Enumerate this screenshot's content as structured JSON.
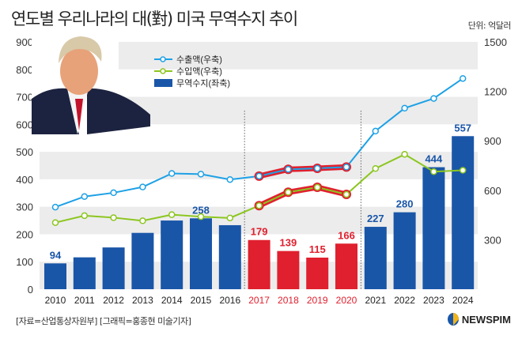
{
  "title": "연도별 우리나라의 대(對) 미국 무역수지 추이",
  "unit": "단위: 억달러",
  "source": "[자료=산업통상자원부] [그래픽=홍종현 미술기자]",
  "logo": "NEWSPIM",
  "chart_data": {
    "type": "bar+line",
    "categories": [
      "2010",
      "2011",
      "2012",
      "2013",
      "2014",
      "2015",
      "2016",
      "2017",
      "2018",
      "2019",
      "2020",
      "2021",
      "2022",
      "2023",
      "2024"
    ],
    "highlight_categories": [
      "2017",
      "2018",
      "2019",
      "2020"
    ],
    "left_axis": {
      "ylim": [
        0,
        900
      ],
      "ticks": [
        0,
        100,
        200,
        300,
        400,
        500,
        600,
        700,
        800,
        900
      ]
    },
    "right_axis": {
      "ylim": [
        0,
        1500
      ],
      "ticks": [
        300,
        600,
        900,
        1200,
        1500
      ]
    },
    "series": [
      {
        "name": "무역수지(좌축)",
        "type": "bar",
        "axis": "left",
        "color": "#1a56a8",
        "highlight_color": "#e0202e",
        "values": [
          94,
          116,
          152,
          205,
          250,
          258,
          233,
          179,
          139,
          115,
          166,
          227,
          280,
          444,
          557
        ],
        "labels": {
          "2010": "94",
          "2015": "258",
          "2017": "179",
          "2018": "139",
          "2019": "115",
          "2020": "166",
          "2021": "227",
          "2022": "280",
          "2023": "444",
          "2024": "557"
        }
      },
      {
        "name": "수출액(우축)",
        "type": "line",
        "axis": "right",
        "color": "#1da1e6",
        "values": [
          498,
          562,
          585,
          620,
          702,
          698,
          665,
          686,
          727,
          733,
          741,
          959,
          1098,
          1157,
          1278
        ]
      },
      {
        "name": "수입액(우축)",
        "type": "line",
        "axis": "right",
        "color": "#8cc61f",
        "values": [
          404,
          446,
          434,
          415,
          452,
          440,
          432,
          507,
          588,
          618,
          575,
          732,
          818,
          713,
          721
        ]
      }
    ],
    "legend_placement": "top-center"
  }
}
